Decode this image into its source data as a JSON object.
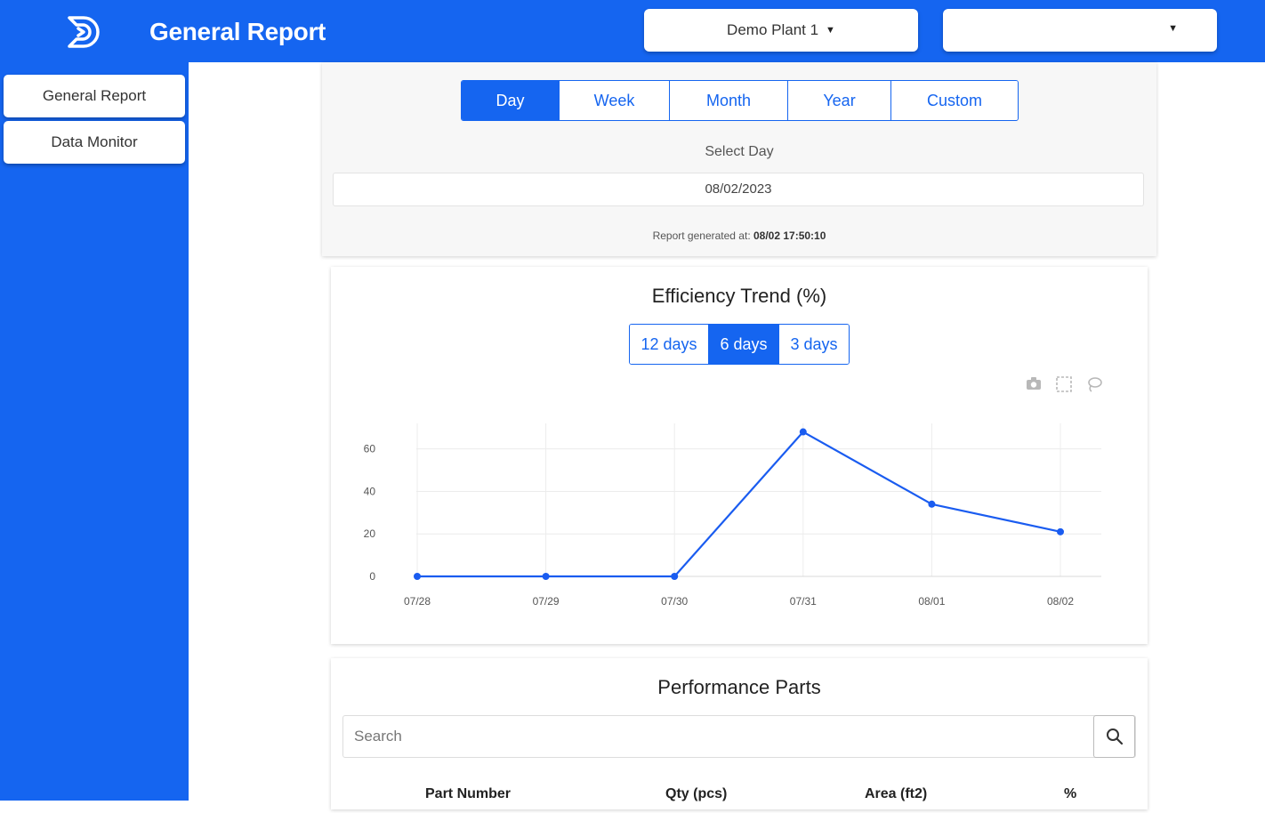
{
  "header": {
    "title": "General Report",
    "plant_select": "Demo Plant 1",
    "second_select": ""
  },
  "sidebar": {
    "items": [
      {
        "label": "General Report"
      },
      {
        "label": "Data Monitor"
      }
    ]
  },
  "period_tabs": [
    {
      "label": "Day",
      "active": true
    },
    {
      "label": "Week",
      "active": false
    },
    {
      "label": "Month",
      "active": false
    },
    {
      "label": "Year",
      "active": false
    },
    {
      "label": "Custom",
      "active": false
    }
  ],
  "select_day": {
    "label": "Select Day",
    "value": "08/02/2023"
  },
  "report_generated": {
    "prefix": "Report generated at:",
    "time": "08/02 17:50:10"
  },
  "efficiency": {
    "title": "Efficiency Trend (%)",
    "ranges": [
      {
        "label": "12 days",
        "active": false
      },
      {
        "label": "6 days",
        "active": true
      },
      {
        "label": "3 days",
        "active": false
      }
    ],
    "toolbar_icons": [
      "camera-icon",
      "select-box-icon",
      "lasso-icon"
    ]
  },
  "chart_data": {
    "type": "line",
    "title": "Efficiency Trend (%)",
    "categories": [
      "07/28",
      "07/29",
      "07/30",
      "07/31",
      "08/01",
      "08/02"
    ],
    "series": [
      {
        "values": [
          0,
          0,
          0,
          68,
          34,
          21
        ]
      }
    ],
    "yticks": [
      0,
      20,
      40,
      60
    ],
    "ytick_labels": [
      "0",
      "20",
      "40",
      "60"
    ],
    "ylim": [
      0,
      72
    ],
    "grid": true,
    "line_color": "#1a5cf0"
  },
  "parts": {
    "title": "Performance Parts",
    "search_placeholder": "Search",
    "columns": [
      "Part Number",
      "Qty (pcs)",
      "Area (ft2)",
      "%"
    ]
  },
  "colors": {
    "brand": "#1565f0"
  }
}
